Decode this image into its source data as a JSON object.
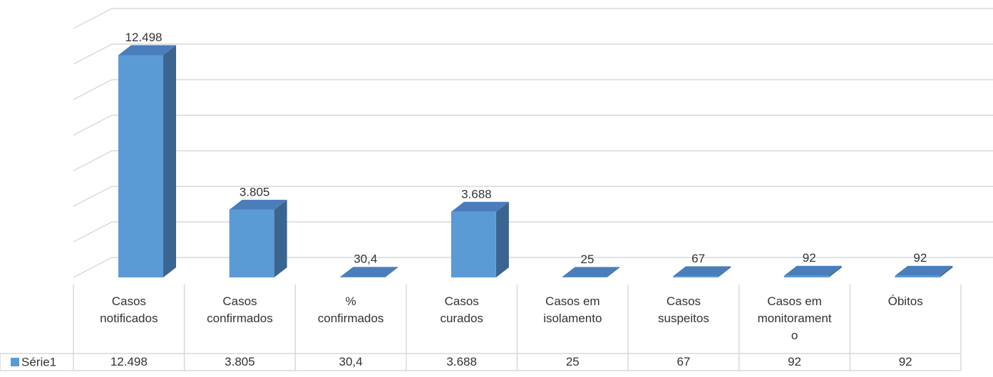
{
  "chart_data": {
    "type": "bar3d",
    "categories": [
      "Casos notificados",
      "Casos confirmados",
      "% confirmados",
      "Casos curados",
      "Casos em isolamento",
      "Casos suspeitos",
      "Casos em monitoramento",
      "Óbitos"
    ],
    "series": [
      {
        "name": "Série1",
        "color": "#5b9bd5",
        "values": [
          12498,
          3805,
          30.4,
          3688,
          25,
          67,
          92,
          92
        ],
        "value_labels": [
          "12.498",
          "3.805",
          "30,4",
          "3.688",
          "25",
          "67",
          "92",
          "92"
        ]
      }
    ],
    "ylim": [
      0,
      14000
    ],
    "yticks": [
      0,
      2000,
      4000,
      6000,
      8000,
      10000,
      12000,
      14000
    ],
    "grid": true,
    "legend": "table"
  }
}
